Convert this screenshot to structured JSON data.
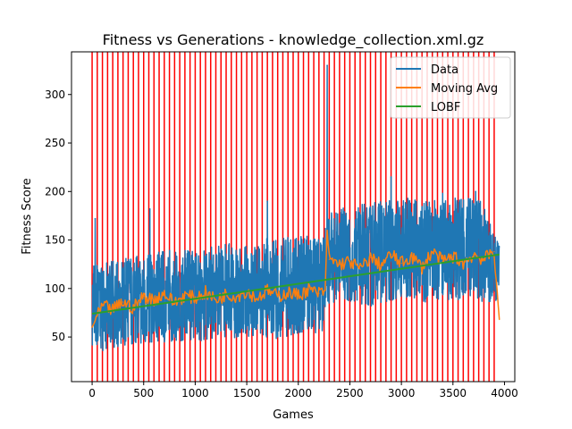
{
  "chart_data": {
    "type": "line",
    "title": "Fitness vs Generations - knowledge_collection.xml.gz",
    "xlabel": "Games",
    "ylabel": "Fitness Score",
    "xlim": [
      -200,
      4100
    ],
    "ylim": [
      4,
      344
    ],
    "x_ticks": [
      0,
      500,
      1000,
      1500,
      2000,
      2500,
      3000,
      3500,
      4000
    ],
    "y_ticks": [
      50,
      100,
      150,
      200,
      250,
      300
    ],
    "grid": false,
    "legend": {
      "placement": "top-right",
      "entries": [
        {
          "label": "Data",
          "color": "#1f77b4"
        },
        {
          "label": "Moving Avg",
          "color": "#ff7f0e"
        },
        {
          "label": "LOBF",
          "color": "#2ca02c"
        }
      ]
    },
    "vertical_markers": {
      "color": "#ff0000",
      "start": 0,
      "end": 3900,
      "spacing": 50
    },
    "series": [
      {
        "name": "Data",
        "color": "#1f77b4",
        "envelope": {
          "x": [
            0,
            250,
            500,
            750,
            1000,
            1250,
            1500,
            1750,
            2000,
            2250,
            2270,
            2500,
            2750,
            3000,
            3250,
            3500,
            3750,
            3950
          ],
          "low": [
            28,
            35,
            38,
            40,
            40,
            42,
            45,
            42,
            45,
            50,
            70,
            80,
            75,
            85,
            80,
            82,
            80,
            82
          ],
          "high": [
            130,
            135,
            140,
            145,
            145,
            150,
            155,
            158,
            160,
            165,
            185,
            190,
            195,
            200,
            195,
            200,
            200,
            155
          ]
        },
        "spikes": [
          {
            "x": 30,
            "y": 172
          },
          {
            "x": 560,
            "y": 182
          },
          {
            "x": 1700,
            "y": 190
          },
          {
            "x": 2280,
            "y": 330
          },
          {
            "x": 2900,
            "y": 215
          },
          {
            "x": 3400,
            "y": 198
          },
          {
            "x": 3720,
            "y": 200
          }
        ]
      },
      {
        "name": "Moving Avg",
        "color": "#ff7f0e",
        "x": [
          0,
          100,
          200,
          300,
          400,
          500,
          600,
          700,
          800,
          900,
          1000,
          1100,
          1200,
          1300,
          1400,
          1500,
          1600,
          1700,
          1800,
          1900,
          2000,
          2100,
          2200,
          2260,
          2280,
          2300,
          2400,
          2500,
          2600,
          2700,
          2800,
          2900,
          3000,
          3100,
          3200,
          3300,
          3400,
          3500,
          3600,
          3700,
          3800,
          3900,
          3950
        ],
        "y": [
          60,
          82,
          78,
          86,
          80,
          92,
          88,
          95,
          85,
          93,
          90,
          96,
          88,
          94,
          92,
          97,
          90,
          98,
          92,
          96,
          93,
          99,
          95,
          98,
          160,
          130,
          125,
          128,
          120,
          132,
          124,
          135,
          126,
          133,
          122,
          138,
          128,
          133,
          126,
          135,
          130,
          138,
          68
        ]
      },
      {
        "name": "LOBF",
        "color": "#2ca02c",
        "x": [
          0,
          3950
        ],
        "y": [
          74,
          135
        ]
      }
    ]
  }
}
